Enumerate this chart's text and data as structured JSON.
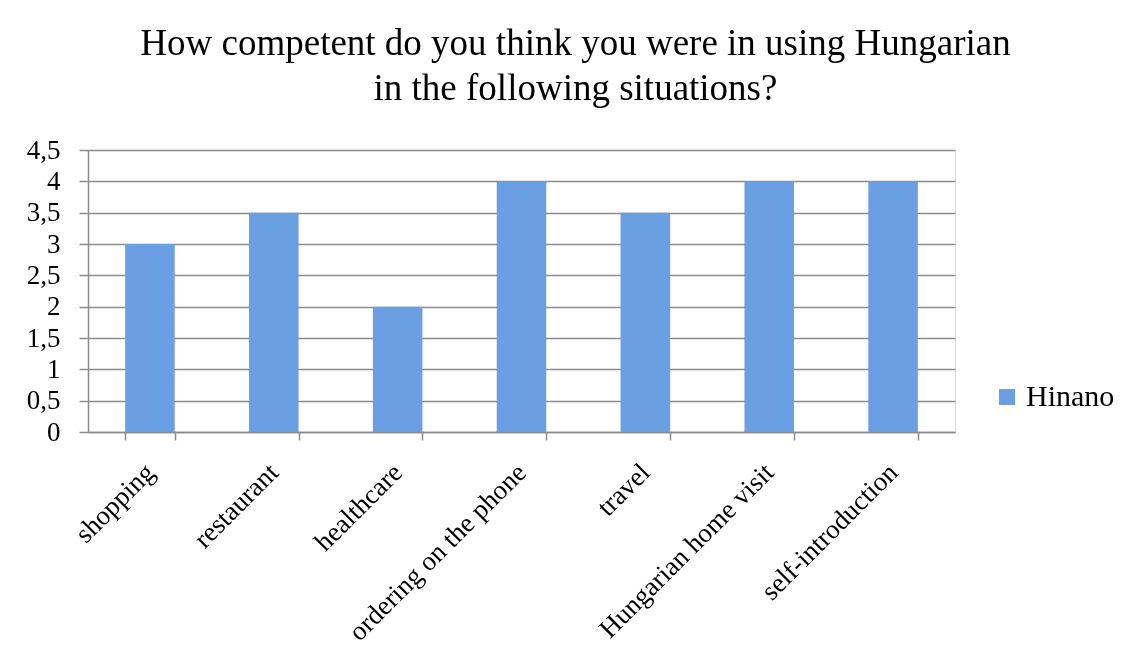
{
  "chart_data": {
    "type": "bar",
    "title": "How competent do you think you were in using Hungarian in the following situations?",
    "categories": [
      "shopping",
      "restaurant",
      "healthcare",
      "ordering on the phone",
      "travel",
      "Hungarian home visit",
      "self-introduction"
    ],
    "series": [
      {
        "name": "Hinano",
        "color": "#6a9fe4",
        "values": [
          3,
          3.5,
          2,
          4,
          3.5,
          4,
          4
        ]
      }
    ],
    "ylim": [
      0,
      4.5
    ],
    "yticks": [
      0,
      {
        "value": 0.5,
        "label": "0,5"
      },
      1,
      {
        "value": 1.5,
        "label": "1,5"
      },
      2,
      {
        "value": 2.5,
        "label": "2,5"
      },
      3,
      {
        "value": 3.5,
        "label": "3,5"
      },
      4,
      {
        "value": 4.5,
        "label": "4,5"
      }
    ],
    "grid": "y",
    "legend": "right"
  }
}
